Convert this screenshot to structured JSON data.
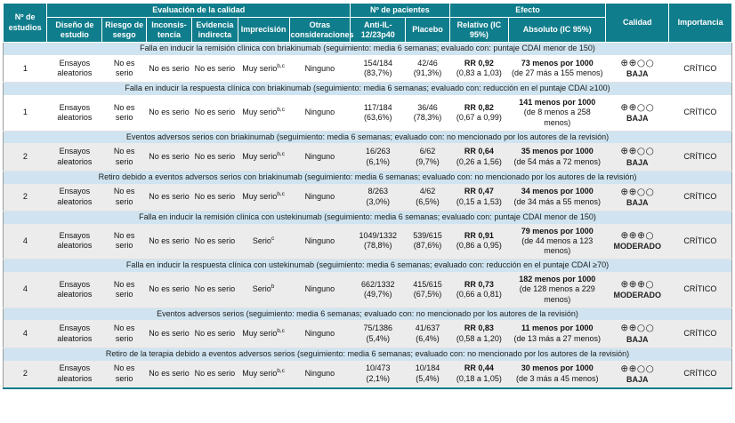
{
  "header": {
    "estudios": "Nº de estudios",
    "eval_group": "Evaluación de la calidad",
    "pacientes_group": "Nº de pacientes",
    "efecto_group": "Efecto",
    "calidad": "Calidad",
    "importancia": "Importancia",
    "cols": {
      "diseno": "Diseño de estudio",
      "sesgo": "Riesgo de sesgo",
      "inconsistencia": "Inconsis-tencia",
      "indirecta": "Evidencia indirecta",
      "imprecision": "Imprecisión",
      "otras": "Otras consideraciones",
      "anti_il": "Anti-IL-12/23p40",
      "placebo": "Placebo",
      "relativo": "Relativo (IC 95%)",
      "absoluto": "Absoluto (IC 95%)"
    }
  },
  "colors": {
    "header_teal": "#107d8c",
    "section_blue": "#cfe4f0",
    "shaded_row_gray": "#ececec"
  },
  "sections": [
    {
      "title": "Falla en inducir la remisión clínica con briakinumab (seguimiento: media 6 semanas; evaluado con: puntaje CDAI menor de 150)",
      "row": {
        "estudios": "1",
        "diseno": "Ensayos aleatorios",
        "sesgo": "No es serio",
        "inconsistencia": "No es serio",
        "indirecta": "No es serio",
        "imprecision": "Muy serio",
        "imprecision_sup": "b,c",
        "otras": "Ninguno",
        "anti_il_n": "154/184",
        "anti_il_pct": "(83,7%)",
        "placebo_n": "42/46",
        "placebo_pct": "(91,3%)",
        "relativo": "RR 0,92",
        "relativo_ci": "(0,83 a 1,03)",
        "absoluto": "73 menos por 1000",
        "absoluto_ci": "(de 27 más a 155 menos)",
        "calidad_symbols": "⊕⊕○○",
        "calidad_label": "BAJA",
        "importancia": "CRÍTICO",
        "shade": false
      }
    },
    {
      "title": "Falla en inducir la respuesta clínica con briakinumab (seguimiento: media 6 semanas; evaluado con: reducción en el puntaje CDAI ≥100)",
      "row": {
        "estudios": "1",
        "diseno": "Ensayos aleatorios",
        "sesgo": "No es serio",
        "inconsistencia": "No es serio",
        "indirecta": "No es serio",
        "imprecision": "Muy serio",
        "imprecision_sup": "b,c",
        "otras": "Ninguno",
        "anti_il_n": "117/184",
        "anti_il_pct": "(63,6%)",
        "placebo_n": "36/46",
        "placebo_pct": "(78,3%)",
        "relativo": "RR 0,82",
        "relativo_ci": "(0,67 a 0,99)",
        "absoluto": "141 menos por 1000",
        "absoluto_ci": "(de 8 menos a 258 menos)",
        "calidad_symbols": "⊕⊕○○",
        "calidad_label": "BAJA",
        "importancia": "CRÍTICO",
        "shade": false
      }
    },
    {
      "title": "Eventos adversos serios con briakinumab (seguimiento: media 6 semanas; evaluado con: no mencionado por los autores de la revisión)",
      "row": {
        "estudios": "2",
        "diseno": "Ensayos aleatorios",
        "sesgo": "No es serio",
        "inconsistencia": "No es serio",
        "indirecta": "No es serio",
        "imprecision": "Muy serio",
        "imprecision_sup": "b,c",
        "otras": "Ninguno",
        "anti_il_n": "16/263",
        "anti_il_pct": "(6,1%)",
        "placebo_n": "6/62",
        "placebo_pct": "(9,7%)",
        "relativo": "RR 0,64",
        "relativo_ci": "(0,26 a 1,56)",
        "absoluto": "35 menos por 1000",
        "absoluto_ci": "(de 54 más a 72 menos)",
        "calidad_symbols": "⊕⊕○○",
        "calidad_label": "BAJA",
        "importancia": "CRÍTICO",
        "shade": true
      }
    },
    {
      "title": "Retiro debido a eventos adversos serios con briakinumab (seguimiento: media 6 semanas; evaluado con: no mencionado por los autores de la revisión)",
      "row": {
        "estudios": "2",
        "diseno": "Ensayos aleatorios",
        "sesgo": "No es serio",
        "inconsistencia": "No es serio",
        "indirecta": "No es serio",
        "imprecision": "Muy serio",
        "imprecision_sup": "b,c",
        "otras": "Ninguno",
        "anti_il_n": "8/263",
        "anti_il_pct": "(3,0%)",
        "placebo_n": "4/62",
        "placebo_pct": "(6,5%)",
        "relativo": "RR 0,47",
        "relativo_ci": "(0,15 a 1,53)",
        "absoluto": "34 menos por 1000",
        "absoluto_ci": "(de 34 más a 55 menos)",
        "calidad_symbols": "⊕⊕○○",
        "calidad_label": "BAJA",
        "importancia": "CRÍTICO",
        "shade": true
      }
    },
    {
      "title": "Falla en inducir la remisión clínica con ustekinumab (seguimiento: media 6 semanas; evaluado con: puntaje CDAI menor de 150)",
      "row": {
        "estudios": "4",
        "diseno": "Ensayos aleatorios",
        "sesgo": "No es serio",
        "inconsistencia": "No es serio",
        "indirecta": "No es serio",
        "imprecision": "Serio",
        "imprecision_sup": "c",
        "otras": "Ninguno",
        "anti_il_n": "1049/1332",
        "anti_il_pct": "(78,8%)",
        "placebo_n": "539/615",
        "placebo_pct": "(87,6%)",
        "relativo": "RR 0,91",
        "relativo_ci": "(0,86 a 0,95)",
        "absoluto": "79 menos por 1000",
        "absoluto_ci": "(de 44 menos a 123 menos)",
        "calidad_symbols": "⊕⊕⊕○",
        "calidad_label": "MODERADO",
        "importancia": "CRÍTICO",
        "shade": true
      }
    },
    {
      "title": "Falla en inducir la respuesta clínica con ustekinumab (seguimiento: media 6 semanas; evaluado con: reducción en el puntaje CDAI ≥70)",
      "row": {
        "estudios": "4",
        "diseno": "Ensayos aleatorios",
        "sesgo": "No es serio",
        "inconsistencia": "No es serio",
        "indirecta": "No es serio",
        "imprecision": "Serio",
        "imprecision_sup": "b",
        "otras": "Ninguno",
        "anti_il_n": "662/1332",
        "anti_il_pct": "(49,7%)",
        "placebo_n": "415/615",
        "placebo_pct": "(67,5%)",
        "relativo": "RR 0,73",
        "relativo_ci": "(0,66 a 0,81)",
        "absoluto": "182 menos por 1000",
        "absoluto_ci": "(de 128 menos a 229 menos)",
        "calidad_symbols": "⊕⊕⊕○",
        "calidad_label": "MODERADO",
        "importancia": "CRÍTICO",
        "shade": true
      }
    },
    {
      "title": "Eventos adversos serios (seguimiento: media 6 semanas; evaluado con: no mencionado por los autores de la revisión)",
      "row": {
        "estudios": "4",
        "diseno": "Ensayos aleatorios",
        "sesgo": "No es serio",
        "inconsistencia": "No es serio",
        "indirecta": "No es serio",
        "imprecision": "Muy serio",
        "imprecision_sup": "b,c",
        "otras": "Ninguno",
        "anti_il_n": "75/1386",
        "anti_il_pct": "(5,4%)",
        "placebo_n": "41/637",
        "placebo_pct": "(6,4%)",
        "relativo": "RR 0,83",
        "relativo_ci": "(0,58 a 1,20)",
        "absoluto": "11 menos por 1000",
        "absoluto_ci": "(de 13 más a 27 menos)",
        "calidad_symbols": "⊕⊕○○",
        "calidad_label": "BAJA",
        "importancia": "CRÍTICO",
        "shade": true
      }
    },
    {
      "title": "Retiro de la terapia debido a eventos adversos serios (seguimiento: media 6 semanas; evaluado con: no mencionado por los autores de la revisión)",
      "row": {
        "estudios": "2",
        "diseno": "Ensayos aleatorios",
        "sesgo": "No es serio",
        "inconsistencia": "No es serio",
        "indirecta": "No es serio",
        "imprecision": "Muy serio",
        "imprecision_sup": "b,c",
        "otras": "Ninguno",
        "anti_il_n": "10/473",
        "anti_il_pct": "(2,1%)",
        "placebo_n": "10/184",
        "placebo_pct": "(5,4%)",
        "relativo": "RR 0,44",
        "relativo_ci": "(0,18 a 1,05)",
        "absoluto": "30 menos por 1000",
        "absoluto_ci": "(de 3 más a 45 menos)",
        "calidad_symbols": "⊕⊕○○",
        "calidad_label": "BAJA",
        "importancia": "CRÍTICO",
        "shade": true
      }
    }
  ]
}
